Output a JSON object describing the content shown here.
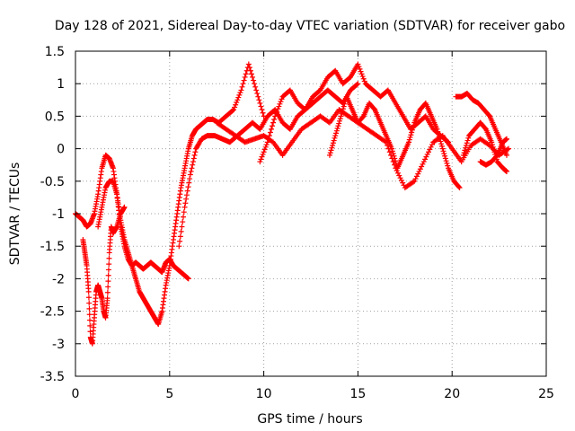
{
  "chart_data": {
    "type": "scatter",
    "title": "Day 128 of 2021, Sidereal Day-to-day VTEC variation (SDTVAR) for receiver gabo",
    "xlabel": "GPS time / hours",
    "ylabel": "SDTVAR / TECUs",
    "xlim": [
      0,
      25
    ],
    "ylim": [
      -3.5,
      1.5
    ],
    "xticks": [
      "0",
      "5",
      "10",
      "15",
      "20",
      "25"
    ],
    "xtick_values": [
      0,
      5,
      10,
      15,
      20,
      25
    ],
    "yticks": [
      "1.5",
      "1",
      "0.5",
      "0",
      "-0.5",
      "-1",
      "-1.5",
      "-2",
      "-2.5",
      "-3",
      "-3.5"
    ],
    "ytick_values": [
      1.5,
      1,
      0.5,
      0,
      -0.5,
      -1,
      -1.5,
      -2,
      -2.5,
      -3,
      -3.5
    ],
    "grid": true,
    "marker": "plus",
    "color": "#ff0000",
    "series": [
      {
        "name": "s1",
        "x": [
          0.0,
          0.2,
          0.4,
          0.6,
          0.8,
          1.0,
          1.2,
          1.4,
          1.6,
          1.8,
          2.0,
          2.2,
          2.4,
          2.6,
          2.8,
          3.0,
          3.2,
          3.4,
          3.6,
          3.8,
          4.0,
          4.2,
          4.4,
          4.6,
          4.8,
          5.0,
          5.2,
          5.4,
          5.6,
          5.8,
          6.0
        ],
        "y": [
          -1.0,
          -1.05,
          -1.1,
          -1.2,
          -1.15,
          -1.0,
          -0.7,
          -0.3,
          -0.1,
          -0.15,
          -0.3,
          -0.7,
          -1.2,
          -1.5,
          -1.7,
          -1.8,
          -1.75,
          -1.8,
          -1.85,
          -1.8,
          -1.75,
          -1.8,
          -1.85,
          -1.9,
          -1.75,
          -1.7,
          -1.8,
          -1.85,
          -1.9,
          -1.95,
          -2.0
        ]
      },
      {
        "name": "s2",
        "x": [
          0.4,
          0.5,
          0.6,
          0.7,
          0.8,
          0.9,
          1.0,
          1.1,
          1.2,
          1.3,
          1.4,
          1.5,
          1.6,
          1.7,
          1.8,
          1.9,
          2.0,
          2.2,
          2.4,
          2.6
        ],
        "y": [
          -1.4,
          -1.6,
          -1.8,
          -2.2,
          -2.9,
          -3.0,
          -2.6,
          -2.2,
          -2.1,
          -2.2,
          -2.3,
          -2.5,
          -2.6,
          -2.3,
          -1.6,
          -1.2,
          -1.3,
          -1.2,
          -1.0,
          -0.9
        ]
      },
      {
        "name": "s3",
        "x": [
          1.2,
          1.4,
          1.6,
          1.8,
          2.0,
          2.2,
          2.4,
          2.6,
          2.8,
          3.0,
          3.2,
          3.4,
          3.6,
          3.8,
          4.0,
          4.2,
          4.4,
          4.6,
          4.8,
          5.0,
          5.2,
          5.4,
          5.6,
          5.8,
          6.0,
          6.2,
          6.4,
          6.6,
          6.8,
          7.0,
          7.3,
          7.6,
          8.0,
          8.4,
          8.8,
          9.2,
          9.6,
          10.0
        ],
        "y": [
          -1.2,
          -0.9,
          -0.6,
          -0.5,
          -0.5,
          -0.7,
          -1.1,
          -1.4,
          -1.6,
          -1.8,
          -2.0,
          -2.2,
          -2.3,
          -2.4,
          -2.5,
          -2.6,
          -2.7,
          -2.5,
          -2.1,
          -1.8,
          -1.4,
          -1.0,
          -0.6,
          -0.3,
          0.0,
          0.2,
          0.3,
          0.35,
          0.4,
          0.45,
          0.45,
          0.4,
          0.5,
          0.6,
          0.9,
          1.3,
          0.9,
          0.5
        ]
      },
      {
        "name": "s4",
        "x": [
          5.5,
          5.8,
          6.1,
          6.4,
          6.7,
          7.0,
          7.4,
          7.8,
          8.2,
          8.6,
          9.0,
          9.4,
          9.8,
          10.2,
          10.6,
          11.0,
          11.4,
          11.8,
          12.2,
          12.6,
          13.0,
          13.4,
          13.8,
          14.2,
          14.6,
          15.0
        ],
        "y": [
          -1.5,
          -0.9,
          -0.4,
          0.0,
          0.15,
          0.2,
          0.2,
          0.15,
          0.1,
          0.2,
          0.3,
          0.4,
          0.3,
          0.5,
          0.6,
          0.4,
          0.3,
          0.5,
          0.6,
          0.7,
          0.8,
          0.9,
          0.8,
          0.7,
          0.9,
          1.0
        ]
      },
      {
        "name": "s5",
        "x": [
          7.5,
          8.0,
          8.5,
          9.0,
          9.5,
          10.0,
          10.5,
          11.0,
          11.5,
          12.0,
          12.5,
          13.0,
          13.5,
          14.0,
          14.5,
          15.0,
          15.5,
          16.0,
          16.5,
          17.0,
          17.5,
          18.0,
          18.5,
          19.0,
          19.5,
          20.0,
          20.5,
          21.0,
          21.5,
          22.0,
          22.5,
          23.0
        ],
        "y": [
          0.4,
          0.3,
          0.2,
          0.1,
          0.15,
          0.2,
          0.1,
          -0.1,
          0.1,
          0.3,
          0.4,
          0.5,
          0.4,
          0.6,
          0.5,
          0.4,
          0.3,
          0.2,
          0.1,
          -0.3,
          -0.6,
          -0.5,
          -0.2,
          0.1,
          0.2,
          0.0,
          -0.2,
          0.05,
          0.15,
          0.05,
          -0.1,
          0.0
        ]
      },
      {
        "name": "s6",
        "x": [
          9.8,
          10.2,
          10.6,
          11.0,
          11.4,
          11.8,
          12.2,
          12.6,
          13.0,
          13.4,
          13.8,
          14.2,
          14.6,
          15.0,
          15.4,
          15.8,
          16.2,
          16.6,
          17.0,
          17.4,
          17.8,
          18.2,
          18.6,
          19.0,
          19.4,
          19.8
        ],
        "y": [
          -0.2,
          0.1,
          0.5,
          0.8,
          0.9,
          0.7,
          0.6,
          0.8,
          0.9,
          1.1,
          1.2,
          1.0,
          1.1,
          1.3,
          1.0,
          0.9,
          0.8,
          0.9,
          0.7,
          0.5,
          0.3,
          0.4,
          0.5,
          0.3,
          0.2,
          0.1
        ]
      },
      {
        "name": "s7",
        "x": [
          13.5,
          13.8,
          14.1,
          14.4,
          14.7,
          15.0,
          15.3,
          15.6,
          15.9,
          16.2,
          16.5,
          16.8,
          17.1,
          17.4,
          17.7,
          18.0,
          18.3,
          18.6,
          18.9,
          19.2,
          19.5,
          19.8,
          20.1,
          20.4
        ],
        "y": [
          -0.1,
          0.2,
          0.5,
          0.8,
          0.6,
          0.4,
          0.5,
          0.7,
          0.6,
          0.4,
          0.2,
          0.0,
          -0.3,
          -0.1,
          0.1,
          0.4,
          0.6,
          0.7,
          0.5,
          0.3,
          0.0,
          -0.3,
          -0.5,
          -0.6
        ]
      },
      {
        "name": "s8",
        "x": [
          20.2,
          20.5,
          20.8,
          21.1,
          21.4,
          21.7,
          22.0,
          22.3,
          22.6,
          22.9
        ],
        "y": [
          0.8,
          0.8,
          0.85,
          0.75,
          0.7,
          0.6,
          0.5,
          0.3,
          0.1,
          -0.1
        ]
      },
      {
        "name": "s9",
        "x": [
          20.6,
          20.9,
          21.2,
          21.5,
          21.8,
          22.1,
          22.4,
          22.7,
          22.9
        ],
        "y": [
          -0.1,
          0.2,
          0.3,
          0.4,
          0.3,
          0.1,
          -0.2,
          -0.3,
          -0.35
        ]
      },
      {
        "name": "s10",
        "x": [
          21.5,
          21.8,
          22.1,
          22.4,
          22.7,
          22.9
        ],
        "y": [
          -0.2,
          -0.25,
          -0.2,
          -0.1,
          0.1,
          0.15
        ]
      }
    ]
  }
}
